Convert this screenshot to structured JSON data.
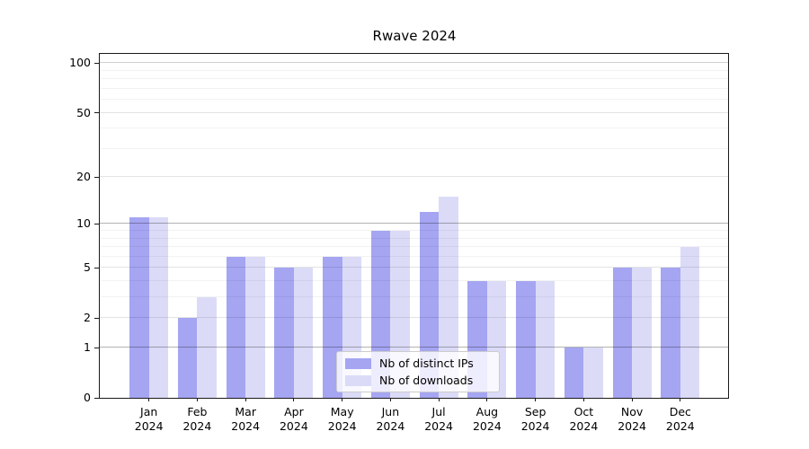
{
  "chart_data": {
    "type": "bar",
    "title": "Rwave 2024",
    "categories": [
      "Jan 2024",
      "Feb 2024",
      "Mar 2024",
      "Apr 2024",
      "May 2024",
      "Jun 2024",
      "Jul 2024",
      "Aug 2024",
      "Sep 2024",
      "Oct 2024",
      "Nov 2024",
      "Dec 2024"
    ],
    "series": [
      {
        "name": "Nb of distinct IPs",
        "color": "#a5a5f2",
        "values": [
          11,
          2,
          6,
          5,
          6,
          9,
          12,
          4,
          4,
          1,
          5,
          5
        ]
      },
      {
        "name": "Nb of downloads",
        "color": "#dbdbf8",
        "values": [
          11,
          3,
          6,
          5,
          6,
          9,
          15,
          4,
          4,
          1,
          5,
          7
        ]
      }
    ],
    "xlabel": "",
    "ylabel": "",
    "yscale": "log10(1+v)",
    "yticks": [
      0,
      1,
      2,
      5,
      10,
      20,
      50,
      100
    ],
    "ylim": [
      0,
      114
    ],
    "grid": "on",
    "grid_levels": {
      "strong": [
        1,
        10
      ],
      "medium": [
        100
      ],
      "light": [
        2,
        5,
        20,
        50
      ],
      "minor": [
        3,
        4,
        6,
        7,
        8,
        9,
        30,
        40,
        60,
        70,
        80,
        90
      ]
    },
    "legend_position": "lower center"
  },
  "legend": {
    "items": [
      {
        "label": "Nb of distinct IPs"
      },
      {
        "label": "Nb of downloads"
      }
    ]
  }
}
